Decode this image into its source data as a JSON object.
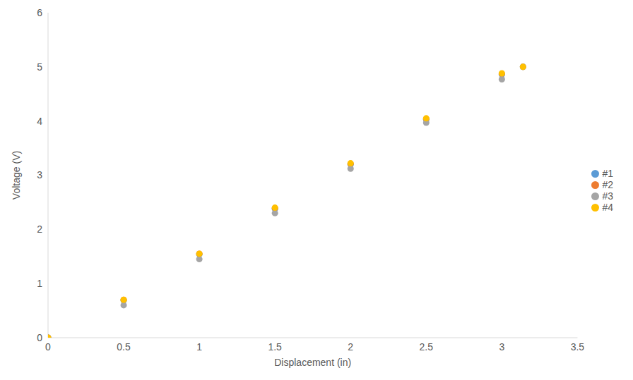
{
  "chart_data": {
    "type": "scatter",
    "x_label": "Displacement (in)",
    "y_label": "Voltage (V)",
    "x": [
      0,
      0.5,
      1,
      1.5,
      2,
      2.5,
      3,
      3.14
    ],
    "series": [
      {
        "name": "#1",
        "color": "#5b9bd5",
        "values": [
          0,
          0.69,
          1.54,
          2.38,
          3.2,
          4.03,
          4.86,
          5.0
        ]
      },
      {
        "name": "#2",
        "color": "#ed7d31",
        "values": [
          0,
          0.7,
          1.55,
          2.39,
          3.21,
          4.04,
          4.87,
          5.0
        ]
      },
      {
        "name": "#3",
        "color": "#a5a5a5",
        "values": [
          0,
          0.6,
          1.45,
          2.3,
          3.12,
          3.97,
          4.77,
          5.0
        ]
      },
      {
        "name": "#4",
        "color": "#ffc000",
        "values": [
          0,
          0.7,
          1.55,
          2.4,
          3.22,
          4.05,
          4.88,
          5.0
        ]
      }
    ],
    "xlim": [
      0,
      3.5
    ],
    "xticks": [
      0,
      0.5,
      1,
      1.5,
      2,
      2.5,
      3,
      3.5
    ],
    "ylim": [
      0,
      6
    ],
    "yticks": [
      0,
      1,
      2,
      3,
      4,
      5,
      6
    ],
    "grid": false,
    "legend": "right",
    "marker": "circle"
  }
}
